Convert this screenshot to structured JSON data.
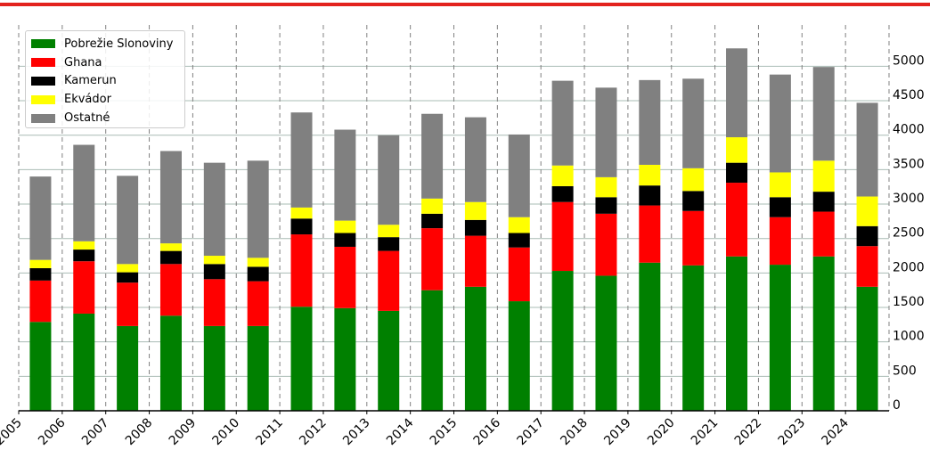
{
  "colors": {
    "accent_rule": "#e3231e",
    "grid_h": "#a9bcb4",
    "grid_v": "#808080",
    "axis": "#000000"
  },
  "chart_data": {
    "type": "bar",
    "stacked": true,
    "categories": [
      "2005",
      "2006",
      "2007",
      "2008",
      "2009",
      "2010",
      "2011",
      "2012",
      "2013",
      "2014",
      "2015",
      "2016",
      "2017",
      "2018",
      "2019",
      "2020",
      "2021",
      "2022",
      "2023",
      "2024"
    ],
    "series": [
      {
        "name": "Pobrežie Slonoviny",
        "color": "#008000",
        "values": [
          1290,
          1410,
          1230,
          1380,
          1230,
          1230,
          1510,
          1490,
          1450,
          1750,
          1800,
          1590,
          2030,
          1960,
          2150,
          2110,
          2240,
          2120,
          2240,
          1800
        ]
      },
      {
        "name": "Ghana",
        "color": "#ff0000",
        "values": [
          600,
          760,
          630,
          750,
          680,
          650,
          1050,
          890,
          870,
          900,
          740,
          780,
          1000,
          900,
          830,
          790,
          1070,
          690,
          650,
          590
        ]
      },
      {
        "name": "Kamerun",
        "color": "#000000",
        "values": [
          180,
          170,
          150,
          190,
          220,
          210,
          230,
          200,
          200,
          210,
          230,
          210,
          230,
          240,
          290,
          290,
          290,
          290,
          290,
          290
        ]
      },
      {
        "name": "Ekvádor",
        "color": "#ffff00",
        "values": [
          120,
          120,
          120,
          110,
          120,
          130,
          160,
          180,
          180,
          220,
          260,
          230,
          300,
          290,
          300,
          330,
          370,
          360,
          450,
          430
        ]
      },
      {
        "name": "Ostatné",
        "color": "#808080",
        "values": [
          1210,
          1400,
          1280,
          1340,
          1350,
          1410,
          1380,
          1320,
          1300,
          1230,
          1230,
          1200,
          1230,
          1300,
          1230,
          1300,
          1290,
          1420,
          1360,
          1360
        ]
      }
    ],
    "y_ticks": [
      0,
      500,
      1000,
      1500,
      2000,
      2500,
      3000,
      3500,
      4000,
      4500,
      5000
    ],
    "ylim": [
      0,
      5600
    ],
    "y_axis_side": "right",
    "grid": true,
    "legend_position": "top-left"
  }
}
